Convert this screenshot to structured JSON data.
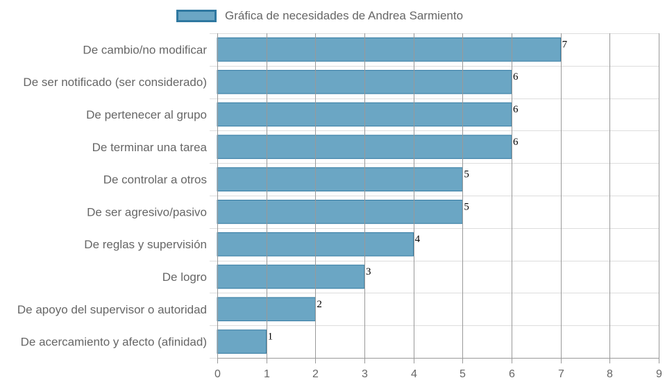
{
  "chart_data": {
    "type": "bar",
    "orientation": "horizontal",
    "legend": {
      "label": "Gráfica de necesidades de Andrea Sarmiento",
      "position": "top"
    },
    "categories": [
      "De cambio/no modificar",
      "De ser notificado (ser considerado)",
      "De pertenecer al grupo",
      "De terminar una tarea",
      "De controlar a otros",
      "De ser agresivo/pasivo",
      "De reglas y supervisión",
      "De logro",
      "De apoyo del supervisor o autoridad",
      "De acercamiento y afecto (afinidad)"
    ],
    "values": [
      7,
      6,
      6,
      6,
      5,
      5,
      4,
      3,
      2,
      1
    ],
    "xlim": [
      0,
      9
    ],
    "xticks": [
      0,
      1,
      2,
      3,
      4,
      5,
      6,
      7,
      8,
      9
    ],
    "grid": true,
    "colors": {
      "bar_fill": "#6ba6c4",
      "bar_border": "#2f78a0",
      "grid": "#dddddd",
      "vgrid": "#999999"
    }
  }
}
